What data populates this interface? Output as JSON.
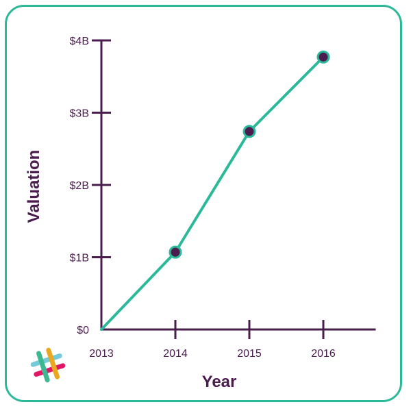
{
  "colors": {
    "border": "#2bb99a",
    "axis": "#4a1d4e",
    "line": "#2bb99a",
    "marker_fill": "#4a1d4e",
    "logo": [
      "#72cadb",
      "#e01765",
      "#e9a820",
      "#3eb890"
    ]
  },
  "icons": {
    "logo": "slack-hash-logo"
  },
  "chart_data": {
    "type": "line",
    "title": "",
    "xlabel": "Year",
    "ylabel": "Valuation",
    "categories": [
      "2013",
      "2014",
      "2015",
      "2016"
    ],
    "ylim": [
      0,
      4
    ],
    "yticks": [
      {
        "value": 0,
        "label": "$0"
      },
      {
        "value": 1,
        "label": "$1B"
      },
      {
        "value": 2,
        "label": "$2B"
      },
      {
        "value": 3,
        "label": "$3B"
      },
      {
        "value": 4,
        "label": "$4B"
      }
    ],
    "series": [
      {
        "values": [
          0,
          1.07,
          2.74,
          3.77
        ],
        "markers": [
          false,
          true,
          true,
          true
        ]
      }
    ],
    "grid": false,
    "legend": "none"
  }
}
